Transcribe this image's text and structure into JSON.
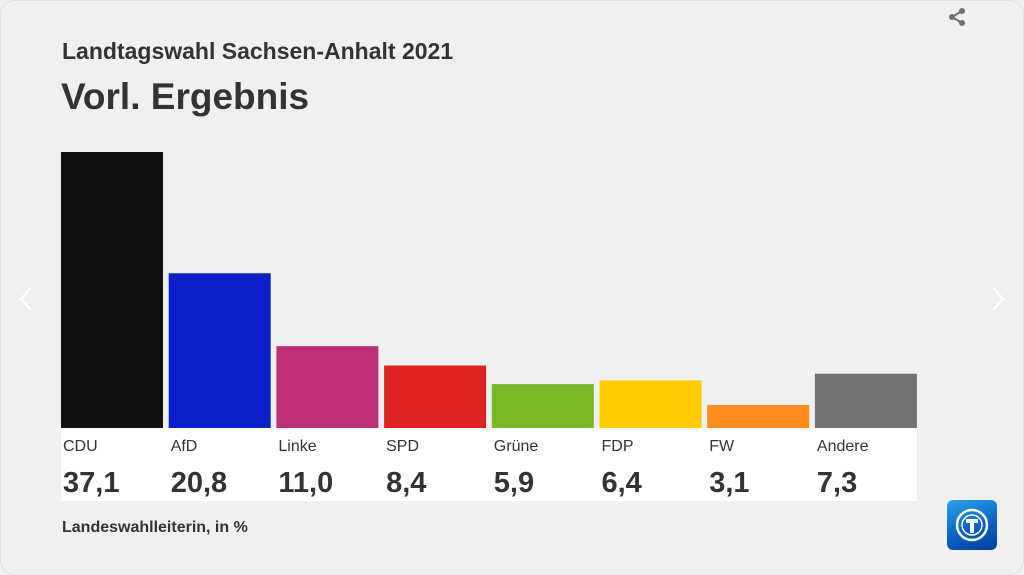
{
  "header": {
    "subtitle": "Landtagswahl Sachsen-Anhalt 2021",
    "title": "Vorl. Ergebnis"
  },
  "icons": {
    "share": "share-icon",
    "prev": "chevron-left-icon",
    "next": "chevron-right-icon",
    "logo": "tagesschau-logo"
  },
  "source": "Landeswahlleiterin, in %",
  "chart_data": {
    "type": "bar",
    "categories": [
      "CDU",
      "AfD",
      "Linke",
      "SPD",
      "Grüne",
      "FDP",
      "FW",
      "Andere"
    ],
    "values": [
      37.1,
      20.8,
      11.0,
      8.4,
      5.9,
      6.4,
      3.1,
      7.3
    ],
    "value_labels": [
      "37,1",
      "20,8",
      "11,0",
      "8,4",
      "5,9",
      "6,4",
      "3,1",
      "7,3"
    ],
    "colors": [
      "#111111",
      "#0a1fc8",
      "#be3075",
      "#dc2222",
      "#78b925",
      "#ffcc00",
      "#ff8c1e",
      "#727272"
    ],
    "ylim": [
      0,
      37.1
    ],
    "grid": false,
    "legend": "none"
  }
}
